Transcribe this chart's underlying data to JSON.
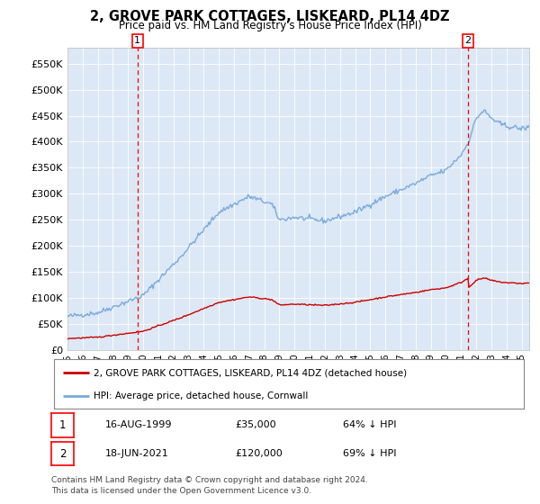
{
  "title": "2, GROVE PARK COTTAGES, LISKEARD, PL14 4DZ",
  "subtitle": "Price paid vs. HM Land Registry's House Price Index (HPI)",
  "legend_line1": "2, GROVE PARK COTTAGES, LISKEARD, PL14 4DZ (detached house)",
  "legend_line2": "HPI: Average price, detached house, Cornwall",
  "transaction1_date": "16-AUG-1999",
  "transaction1_price": "£35,000",
  "transaction1_pct": "64% ↓ HPI",
  "transaction2_date": "18-JUN-2021",
  "transaction2_price": "£120,000",
  "transaction2_pct": "69% ↓ HPI",
  "footer": "Contains HM Land Registry data © Crown copyright and database right 2024.\nThis data is licensed under the Open Government Licence v3.0.",
  "hpi_color": "#7aaadd",
  "price_color": "#cc0000",
  "plot_bg_color": "#dce8f5",
  "ylim_min": 0,
  "ylim_max": 580000,
  "transaction1_year": 1999.625,
  "transaction2_year": 2021.46
}
